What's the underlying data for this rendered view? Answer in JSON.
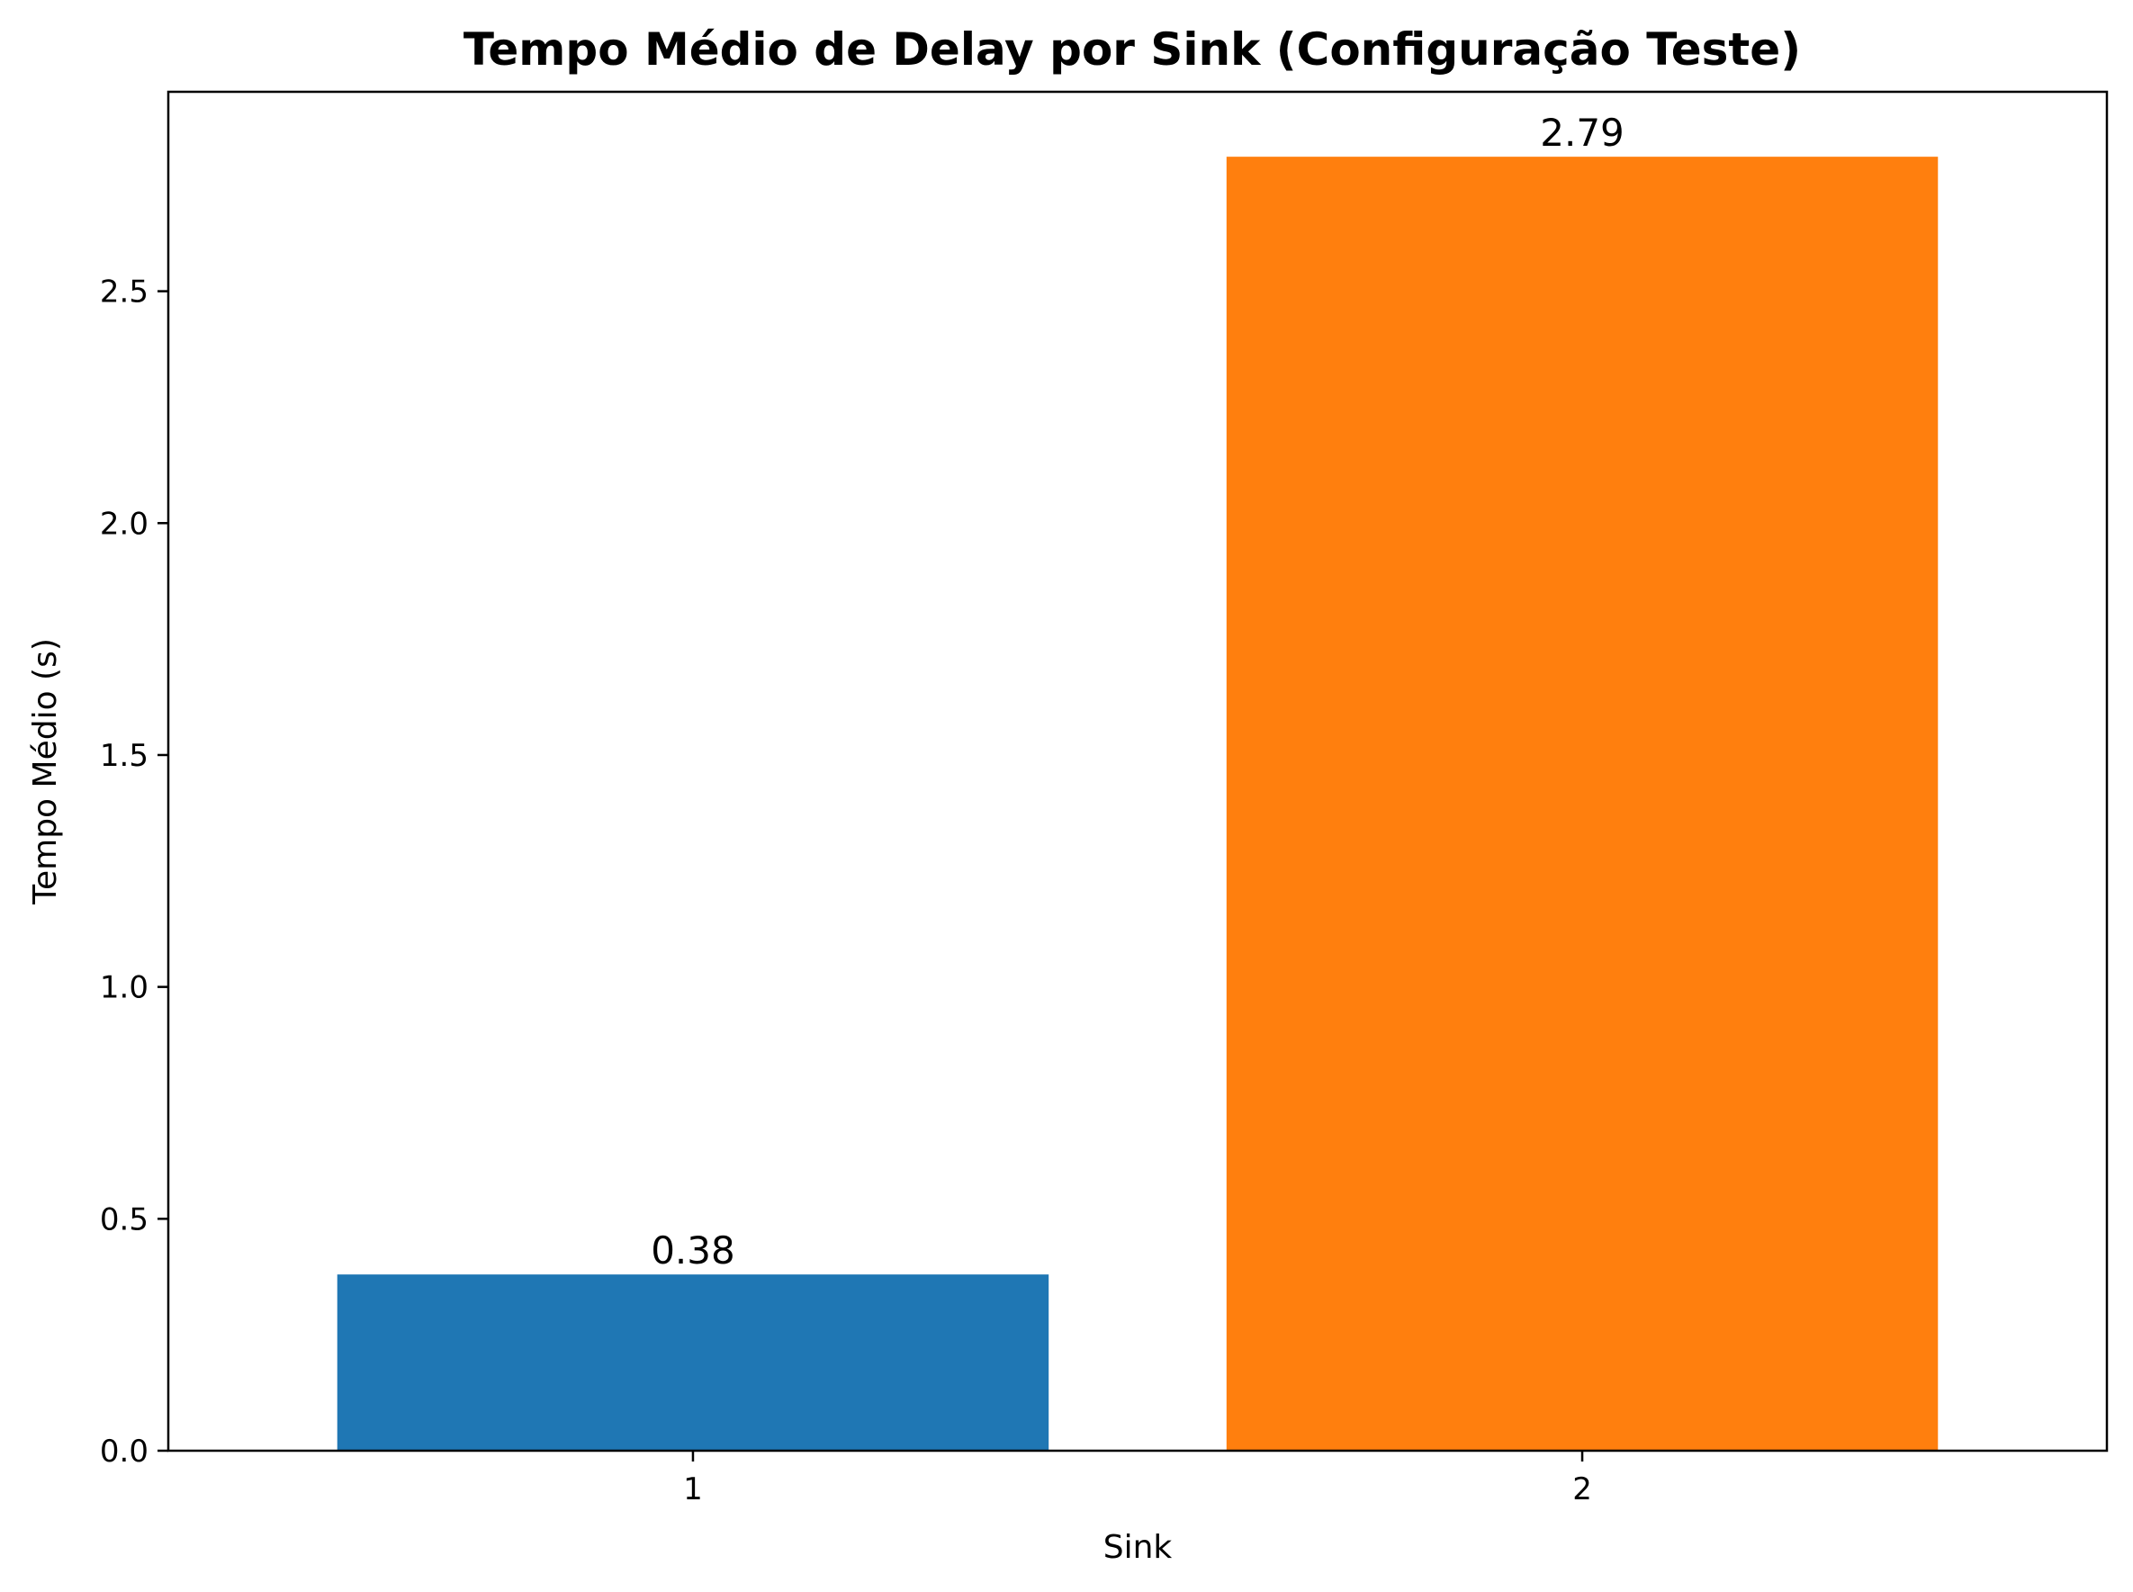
{
  "chart_data": {
    "type": "bar",
    "title": "Tempo Médio de Delay por Sink (Configuração Teste)",
    "xlabel": "Sink",
    "ylabel": "Tempo Médio (s)",
    "categories": [
      "1",
      "2"
    ],
    "values": [
      0.38,
      2.79
    ],
    "data_labels": [
      "0.38",
      "2.79"
    ],
    "colors": [
      "#1f77b4",
      "#ff7f0e"
    ],
    "ylim": [
      0,
      2.93
    ],
    "yticks": [
      0.0,
      0.5,
      1.0,
      1.5,
      2.0,
      2.5
    ],
    "ytick_labels": [
      "0.0",
      "0.5",
      "1.0",
      "1.5",
      "2.0",
      "2.5"
    ],
    "grid": false,
    "legend": false
  }
}
